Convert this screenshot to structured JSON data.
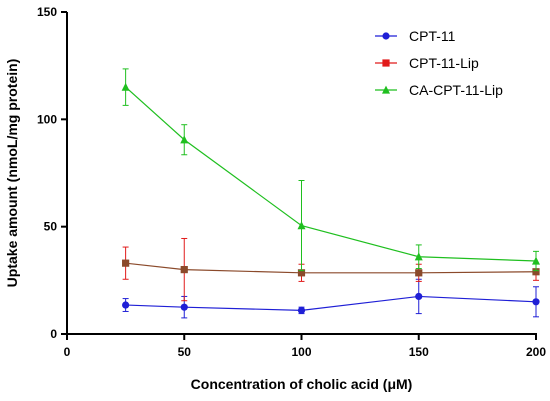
{
  "chart_data": {
    "type": "line",
    "title": "",
    "xlabel": "Concentration of cholic acid (μM)",
    "ylabel": "Uptake amount (nmoL/mg protein)",
    "xlim": [
      0,
      200
    ],
    "ylim": [
      0,
      150
    ],
    "x_ticks": [
      0,
      50,
      100,
      150,
      200
    ],
    "y_ticks": [
      0,
      50,
      100,
      150
    ],
    "grid": false,
    "legend_position": "top-right",
    "series": [
      {
        "name": "CPT-11",
        "color": "#1f1fd6",
        "marker": "circle",
        "x": [
          25,
          50,
          100,
          150,
          200
        ],
        "y": [
          13.5,
          12.5,
          11,
          17.5,
          15
        ],
        "err": [
          3,
          5,
          1.5,
          8,
          7
        ]
      },
      {
        "name": "CPT-11-Lip",
        "color": "#e11a1a",
        "line_color": "#8b4a2b",
        "marker": "square",
        "x": [
          25,
          50,
          100,
          150,
          200
        ],
        "y": [
          33,
          30,
          28.5,
          28.5,
          29
        ],
        "err": [
          7.5,
          14.5,
          4,
          4,
          4
        ]
      },
      {
        "name": "CA-CPT-11-Lip",
        "color": "#1fbf1f",
        "marker": "triangle",
        "x": [
          25,
          50,
          100,
          150,
          200
        ],
        "y": [
          115,
          90.5,
          50.5,
          36,
          34
        ],
        "err": [
          8.5,
          7,
          21,
          5.5,
          4.5
        ]
      }
    ]
  }
}
